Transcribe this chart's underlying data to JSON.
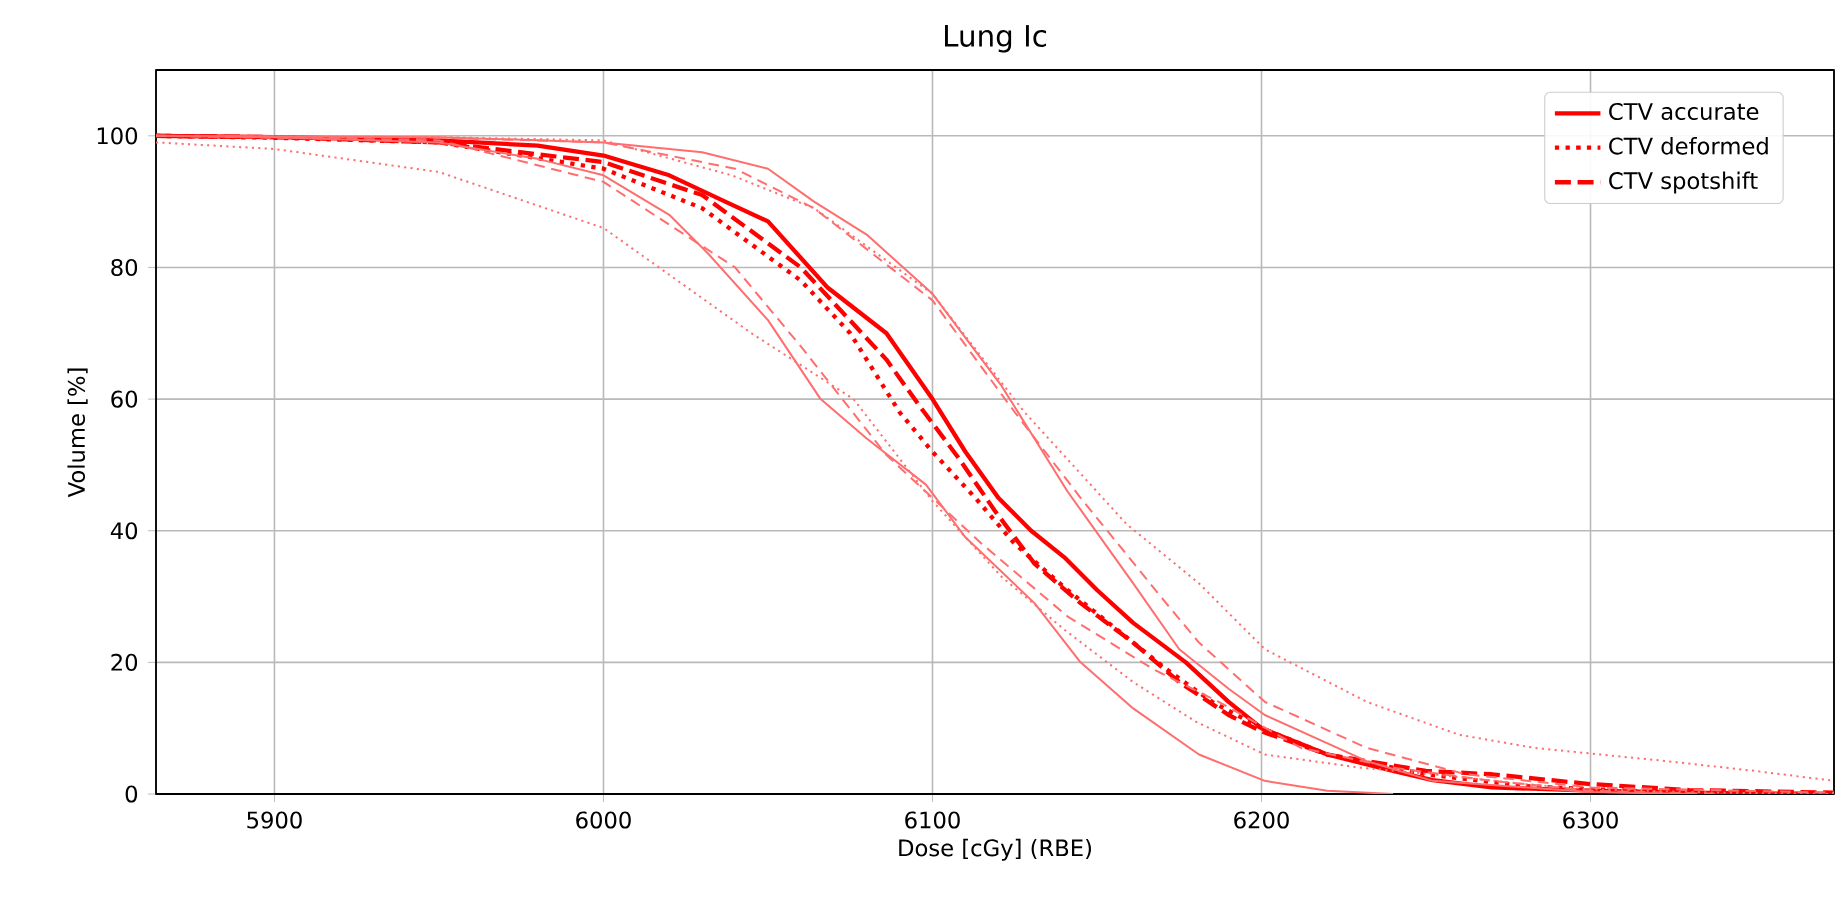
{
  "chart_data": {
    "type": "line",
    "title": "Lung Ic",
    "xlabel": "Dose [cGy] (RBE)",
    "ylabel": "Volume [%]",
    "xlim": [
      5864,
      6374
    ],
    "ylim": [
      0,
      110
    ],
    "xticks": [
      5900,
      6000,
      6100,
      6200,
      6300
    ],
    "yticks": [
      0,
      20,
      40,
      60,
      80,
      100
    ],
    "grid": true,
    "legend": "top right",
    "marker": "none",
    "series": [
      {
        "name": "CTV accurate",
        "color": "#ff0000",
        "line_style": "solid",
        "x": [
          5864,
          5900,
          5950,
          5980,
          6000,
          6020,
          6037,
          6050,
          6068,
          6086,
          6100,
          6110,
          6120,
          6130,
          6140,
          6150,
          6161,
          6177,
          6190,
          6200,
          6220,
          6240,
          6252,
          6270,
          6300,
          6330,
          6374
        ],
        "values": [
          100,
          99.8,
          99.3,
          98.5,
          97,
          94,
          90,
          87,
          77,
          70,
          60,
          52,
          45,
          40,
          36,
          31,
          26,
          20,
          14,
          10,
          6,
          3.5,
          2.1,
          1,
          0.5,
          0.2,
          0
        ]
      },
      {
        "name": "CTV deformed",
        "color": "#ff0000",
        "line_style": "dotted",
        "x": [
          5864,
          5900,
          5950,
          6000,
          6030,
          6060,
          6075,
          6090,
          6100,
          6113,
          6125,
          6141,
          6161,
          6171,
          6185,
          6200,
          6220,
          6250,
          6280,
          6320,
          6350
        ],
        "values": [
          100,
          99.7,
          99,
          95,
          89,
          78,
          70,
          58,
          52,
          45,
          38,
          31,
          23,
          19,
          14,
          10,
          6,
          3,
          1.2,
          0.3,
          0
        ]
      },
      {
        "name": "CTV spotshift",
        "color": "#ff0000",
        "line_style": "dashed",
        "x": [
          5864,
          5900,
          5950,
          6000,
          6030,
          6060,
          6086,
          6096,
          6108,
          6119,
          6131,
          6145,
          6161,
          6175,
          6190,
          6200,
          6220,
          6250,
          6270,
          6300,
          6330,
          6374
        ],
        "values": [
          100,
          99.8,
          99,
          96,
          91,
          80,
          66,
          59,
          51,
          43,
          35,
          29,
          23,
          17,
          12,
          9.5,
          6,
          3.5,
          3,
          1.5,
          0.6,
          0.2
        ]
      },
      {
        "color": "#ff6e6e",
        "line_style": "solid",
        "x": [
          5864,
          5950,
          6000,
          6030,
          6050,
          6064,
          6080,
          6100,
          6121,
          6141,
          6161,
          6175,
          6190,
          6201,
          6232,
          6252,
          6300,
          6330
        ],
        "values": [
          100,
          99.8,
          99,
          97.5,
          95,
          90,
          85,
          76,
          62,
          46,
          32,
          22,
          16,
          12,
          5,
          2,
          0.3,
          0
        ]
      },
      {
        "color": "#ff6e6e",
        "line_style": "solid",
        "x": [
          5864,
          5900,
          5950,
          5980,
          6000,
          6020,
          6032,
          6050,
          6066,
          6080,
          6098,
          6110,
          6131,
          6145,
          6161,
          6181,
          6201,
          6220,
          6240
        ],
        "values": [
          100,
          99.8,
          99,
          96.5,
          94,
          88,
          82,
          72,
          60,
          54,
          47,
          39,
          29,
          20,
          13,
          6,
          2,
          0.5,
          0
        ]
      },
      {
        "color": "#ff6e6e",
        "line_style": "dotted",
        "x": [
          5864,
          5950,
          6000,
          6039,
          6064,
          6100,
          6128,
          6159,
          6181,
          6201,
          6232,
          6260,
          6283,
          6323,
          6350,
          6374
        ],
        "values": [
          100,
          99.8,
          99.3,
          94,
          89,
          76,
          58,
          41,
          32,
          22,
          14,
          9,
          7,
          5,
          3.5,
          2
        ]
      },
      {
        "color": "#ff6e6e",
        "line_style": "dotted",
        "x": [
          5864,
          5900,
          5950,
          6000,
          6045,
          6076,
          6100,
          6121,
          6140,
          6161,
          6180,
          6201,
          6230,
          6252,
          6280,
          6300,
          6340,
          6374
        ],
        "values": [
          99,
          98,
          94.5,
          86,
          70,
          60,
          44.5,
          33,
          25,
          17,
          11,
          6,
          4,
          3,
          1.5,
          0.7,
          0.2,
          0
        ]
      },
      {
        "color": "#ff6e6e",
        "line_style": "dashed",
        "x": [
          5864,
          5950,
          6000,
          6040,
          6064,
          6100,
          6125,
          6145,
          6171,
          6181,
          6201,
          6232,
          6262,
          6300,
          6374
        ],
        "values": [
          100,
          99.7,
          99,
          95,
          89,
          75,
          58,
          45,
          29,
          23,
          14,
          7,
          3,
          1,
          0.2
        ]
      },
      {
        "color": "#ff6e6e",
        "line_style": "dashed",
        "x": [
          5864,
          5950,
          6000,
          6040,
          6060,
          6086,
          6115,
          6141,
          6167,
          6187,
          6212,
          6240,
          6270,
          6300,
          6340
        ],
        "values": [
          100,
          99.3,
          93,
          80,
          68,
          51.5,
          38,
          27,
          19,
          14,
          7,
          4,
          2,
          0.5,
          0
        ]
      }
    ]
  }
}
